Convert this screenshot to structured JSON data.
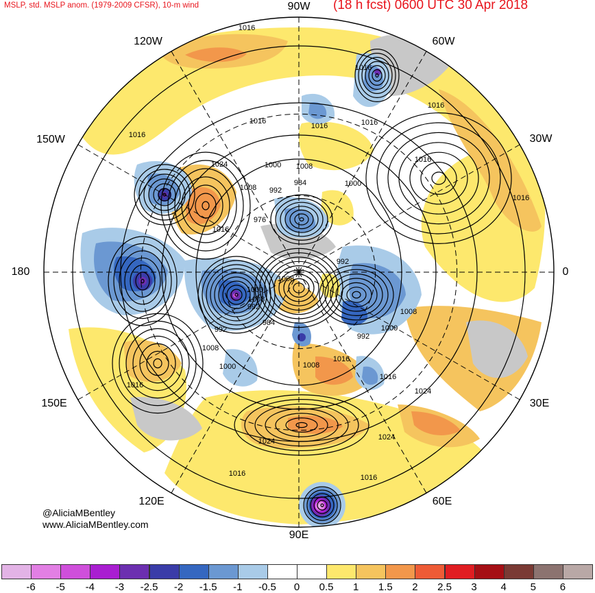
{
  "header": {
    "product_title": "MSLP, std. MSLP anom. (1979-2009 CFSR), 10-m wind",
    "forecast_time": "(18 h fcst) 0600 UTC 30 Apr 2018"
  },
  "credits": {
    "handle": "@AliciaMBentley",
    "website": "www.AliciaMBentley.com"
  },
  "map": {
    "projection": "north polar stereographic",
    "longitude_labels": [
      "90W",
      "60W",
      "30W",
      "0",
      "30E",
      "60E",
      "90E",
      "120E",
      "150E",
      "180",
      "150W",
      "120W"
    ],
    "isobar_labels": [
      "1016",
      "1016",
      "1016",
      "1016",
      "1016",
      "1016",
      "1016",
      "1016",
      "1024",
      "1016",
      "1000",
      "1008",
      "984",
      "992",
      "1000",
      "1008",
      "976",
      "1016",
      "992",
      "1008",
      "1000",
      "1008",
      "992",
      "1008",
      "992",
      "1000",
      "984",
      "992",
      "1008",
      "1000",
      "1016",
      "1016",
      "1008",
      "1024",
      "1024",
      "1024",
      "1016",
      "1016",
      "1016"
    ],
    "colors": {
      "land_gray": "#c8c8c8",
      "contour": "#000000",
      "graticule": "#000000"
    }
  },
  "colorbar": {
    "tick_labels": [
      "-6",
      "-5",
      "-4",
      "-3",
      "-2.5",
      "-2",
      "-1.5",
      "-1",
      "-0.5",
      "0",
      "0.5",
      "1",
      "1.5",
      "2",
      "2.5",
      "3",
      "4",
      "5",
      "6"
    ],
    "bins": [
      {
        "color": "#e3b3e6"
      },
      {
        "color": "#e27fe4"
      },
      {
        "color": "#cf4fdb"
      },
      {
        "color": "#a91ed1"
      },
      {
        "color": "#6c2fb0"
      },
      {
        "color": "#3a3ca8"
      },
      {
        "color": "#3567c0"
      },
      {
        "color": "#6b98d2"
      },
      {
        "color": "#a9cbe8"
      },
      {
        "color": "#ffffff"
      },
      {
        "color": "#ffffff"
      },
      {
        "color": "#fde86d"
      },
      {
        "color": "#f5c45e"
      },
      {
        "color": "#f2974b"
      },
      {
        "color": "#ee5b36"
      },
      {
        "color": "#e01d22"
      },
      {
        "color": "#a50f15"
      },
      {
        "color": "#7a3a34"
      },
      {
        "color": "#8c7370"
      },
      {
        "color": "#b9a8a6"
      }
    ]
  }
}
